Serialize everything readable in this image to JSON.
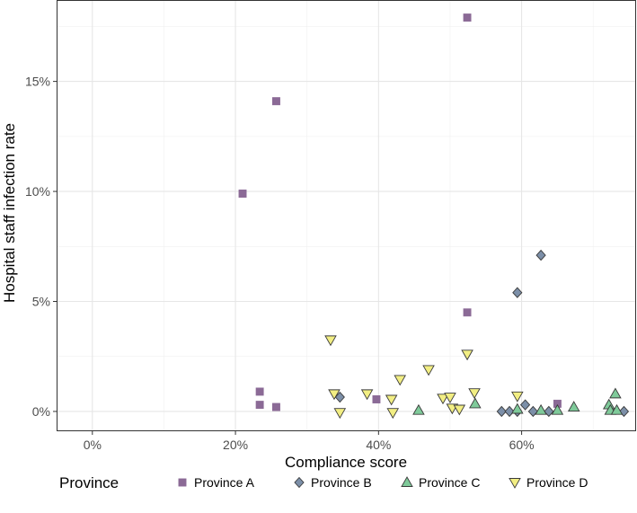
{
  "chart_data": {
    "type": "scatter",
    "title": "",
    "xlabel": "Compliance score",
    "ylabel": "Hospital staff infection rate",
    "xlim": [
      -0.05,
      0.76
    ],
    "ylim": [
      -0.009,
      0.187
    ],
    "x_ticks": [
      0,
      0.2,
      0.4,
      0.6
    ],
    "x_tick_labels": [
      "0%",
      "20%",
      "40%",
      "60%"
    ],
    "y_ticks": [
      0,
      0.05,
      0.1,
      0.15
    ],
    "y_tick_labels": [
      "0%",
      "5%",
      "10%",
      "15%"
    ],
    "grid": true,
    "legend_title": "Province",
    "legend_position": "bottom",
    "series": [
      {
        "name": "Province A",
        "marker": "square",
        "color": "#8B6A96",
        "points": [
          {
            "x": 0.21,
            "y": 0.099
          },
          {
            "x": 0.257,
            "y": 0.141
          },
          {
            "x": 0.524,
            "y": 0.179
          },
          {
            "x": 0.524,
            "y": 0.045
          },
          {
            "x": 0.234,
            "y": 0.009
          },
          {
            "x": 0.234,
            "y": 0.003
          },
          {
            "x": 0.257,
            "y": 0.002
          },
          {
            "x": 0.397,
            "y": 0.0055
          },
          {
            "x": 0.65,
            "y": 0.0035
          }
        ]
      },
      {
        "name": "Province B",
        "marker": "diamond",
        "color": "#7C8FA8",
        "points": [
          {
            "x": 0.627,
            "y": 0.071
          },
          {
            "x": 0.594,
            "y": 0.054
          },
          {
            "x": 0.346,
            "y": 0.0065
          },
          {
            "x": 0.572,
            "y": 0.0
          },
          {
            "x": 0.583,
            "y": 0.0
          },
          {
            "x": 0.594,
            "y": 0.0
          },
          {
            "x": 0.605,
            "y": 0.003
          },
          {
            "x": 0.616,
            "y": 0.0
          },
          {
            "x": 0.638,
            "y": 0.0
          },
          {
            "x": 0.743,
            "y": 0.0
          }
        ]
      },
      {
        "name": "Province C",
        "marker": "triangle-up",
        "color": "#7FCA9A",
        "points": [
          {
            "x": 0.456,
            "y": 0.0005
          },
          {
            "x": 0.535,
            "y": 0.0035
          },
          {
            "x": 0.594,
            "y": 0.001
          },
          {
            "x": 0.627,
            "y": 0.0005
          },
          {
            "x": 0.65,
            "y": 0.0005
          },
          {
            "x": 0.673,
            "y": 0.002
          },
          {
            "x": 0.722,
            "y": 0.003
          },
          {
            "x": 0.724,
            "y": 0.0005
          },
          {
            "x": 0.731,
            "y": 0.008
          },
          {
            "x": 0.733,
            "y": 0.0005
          }
        ]
      },
      {
        "name": "Province D",
        "marker": "triangle-down",
        "color": "#F2EE83",
        "points": [
          {
            "x": 0.333,
            "y": 0.0325
          },
          {
            "x": 0.338,
            "y": 0.008
          },
          {
            "x": 0.346,
            "y": -0.0005
          },
          {
            "x": 0.384,
            "y": 0.008
          },
          {
            "x": 0.418,
            "y": 0.0055
          },
          {
            "x": 0.42,
            "y": -0.0005
          },
          {
            "x": 0.43,
            "y": 0.0145
          },
          {
            "x": 0.47,
            "y": 0.019
          },
          {
            "x": 0.49,
            "y": 0.006
          },
          {
            "x": 0.5,
            "y": 0.0065
          },
          {
            "x": 0.503,
            "y": 0.0015
          },
          {
            "x": 0.513,
            "y": 0.001
          },
          {
            "x": 0.524,
            "y": 0.026
          },
          {
            "x": 0.534,
            "y": 0.0085
          },
          {
            "x": 0.594,
            "y": 0.007
          }
        ]
      }
    ]
  }
}
